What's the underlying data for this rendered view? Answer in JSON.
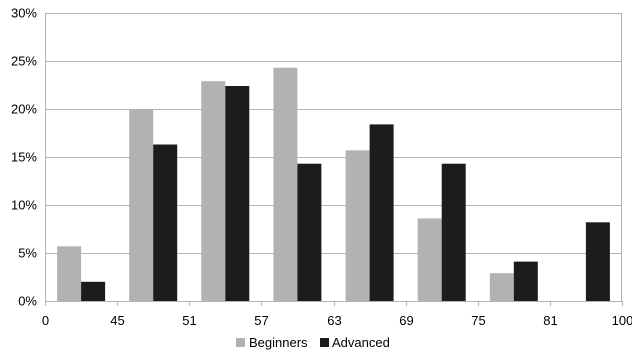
{
  "chart_data": {
    "type": "bar",
    "categories": [
      "45",
      "51",
      "57",
      "63",
      "69",
      "75",
      "81",
      "100"
    ],
    "x_tick_labels": [
      "0",
      "45",
      "51",
      "57",
      "63",
      "69",
      "75",
      "81",
      "100"
    ],
    "series": [
      {
        "name": "Beginners",
        "color": "#b2b2b2",
        "values": [
          5.7,
          20.0,
          22.9,
          24.3,
          15.7,
          8.6,
          2.9,
          0
        ]
      },
      {
        "name": "Advanced",
        "color": "#1c1c1c",
        "values": [
          2.0,
          16.3,
          22.4,
          14.3,
          18.4,
          14.3,
          4.1,
          8.2
        ]
      }
    ],
    "y_ticks": [
      0,
      5,
      10,
      15,
      20,
      25,
      30
    ],
    "y_tick_labels": [
      "0%",
      "5%",
      "10%",
      "15%",
      "20%",
      "25%",
      "30%"
    ],
    "ylim": [
      0,
      30
    ],
    "grid": true,
    "legend_position": "bottom",
    "title": "",
    "xlabel": "",
    "ylabel": ""
  }
}
